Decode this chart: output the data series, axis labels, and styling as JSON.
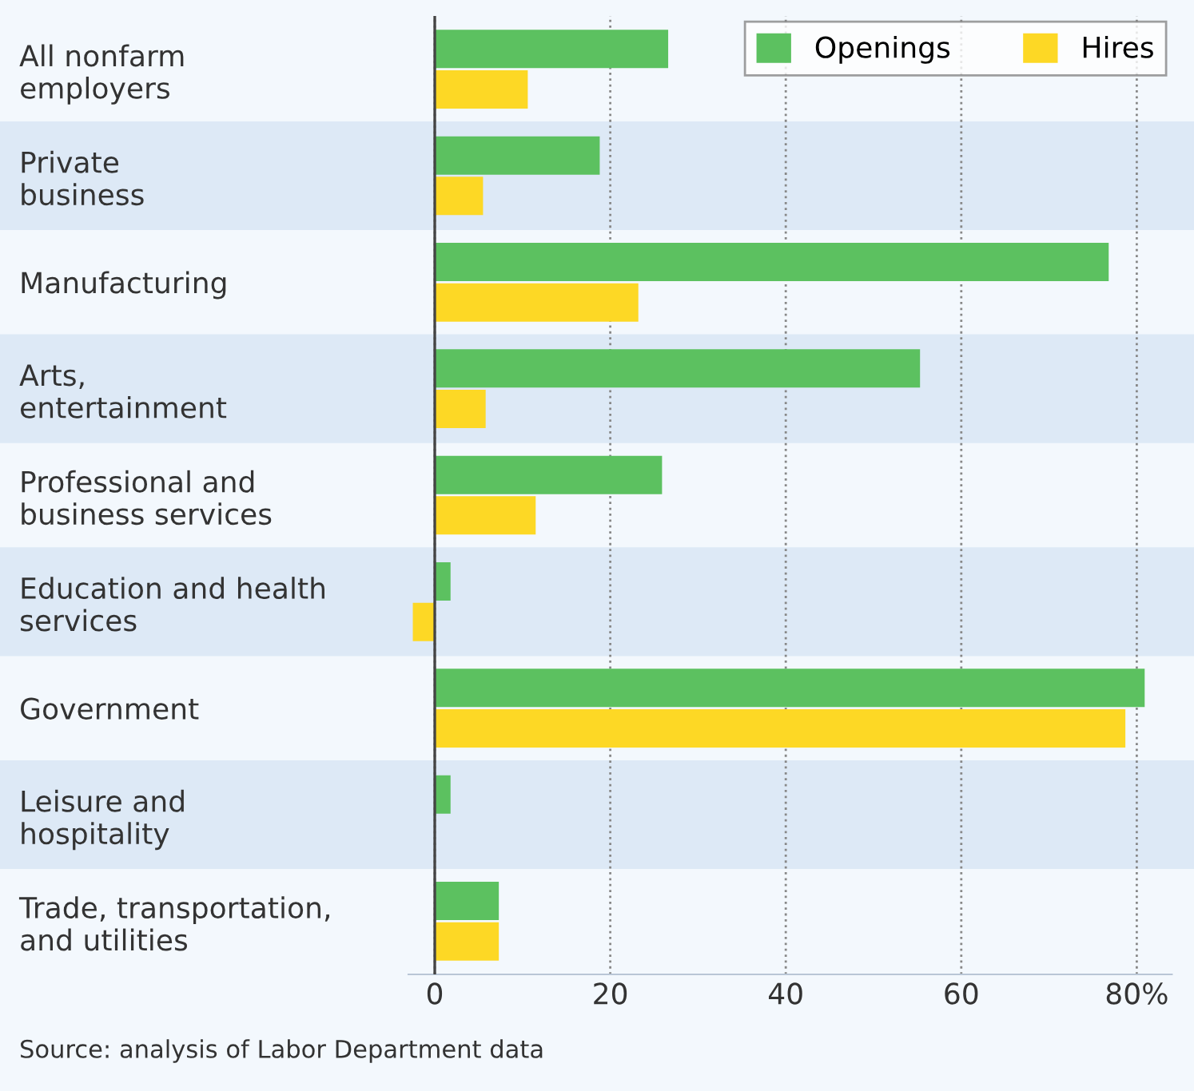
{
  "chart_data": {
    "type": "bar",
    "orientation": "horizontal",
    "categories": [
      "All nonfarm\nemployers",
      "Private\nbusiness",
      "Manufacturing",
      "Arts,\nentertainment",
      "Professional and\nbusiness services",
      "Education and health\nservices",
      "Government",
      "Leisure and\nhospitality",
      "Trade, transportation,\nand utilities"
    ],
    "series": [
      {
        "name": "Openings",
        "color": "#5cc160",
        "values": [
          26.6,
          18.8,
          76.8,
          55.3,
          25.9,
          1.8,
          80.9,
          1.8,
          7.3
        ]
      },
      {
        "name": "Hires",
        "color": "#fdd825",
        "values": [
          10.6,
          5.5,
          23.2,
          5.8,
          11.5,
          -2.5,
          78.7,
          null,
          7.3
        ]
      }
    ],
    "xlim": [
      -3,
      84
    ],
    "xticks": [
      0,
      20,
      40,
      60,
      {
        "value": 80,
        "label": "80%"
      }
    ],
    "grid": "x",
    "legend": "top right",
    "annotations": [
      "Source: analysis of Labor Department data"
    ]
  }
}
